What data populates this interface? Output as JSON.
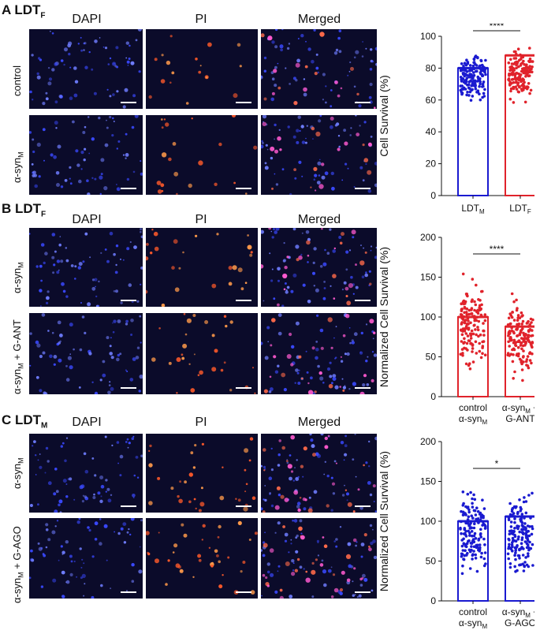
{
  "panels": [
    {
      "label": "A LDT",
      "label_sub": "F",
      "columns": [
        "DAPI",
        "PI",
        "Merged"
      ],
      "rows": [
        {
          "label": "control",
          "label_sub": ""
        },
        {
          "label": "α-syn",
          "label_sub": "M"
        }
      ]
    },
    {
      "label": "B LDT",
      "label_sub": "F",
      "columns": [
        "DAPI",
        "PI",
        "Merged"
      ],
      "rows": [
        {
          "label": "α-syn",
          "label_sub": "M"
        },
        {
          "label": "α-syn",
          "label_sub": "M",
          "label_suffix": " + G-ANT"
        }
      ]
    },
    {
      "label": "C LDT",
      "label_sub": "M",
      "columns": [
        "DAPI",
        "PI",
        "Merged"
      ],
      "rows": [
        {
          "label": "α-syn",
          "label_sub": "M"
        },
        {
          "label": "α-syn",
          "label_sub": "M",
          "label_suffix": " + G-AGO"
        }
      ]
    }
  ],
  "colors": {
    "blue": "#1a1ad0",
    "red": "#e0232b",
    "micrograph_bg": "#0b0b2a"
  },
  "chart_data": [
    {
      "type": "bar",
      "ylabel": "Cell Survival (%)",
      "ylim": [
        0,
        100
      ],
      "yticks": [
        0,
        20,
        40,
        60,
        80,
        100
      ],
      "categories": [
        {
          "main": "LDT",
          "sub": "M"
        },
        {
          "main": "LDT",
          "sub": "F"
        }
      ],
      "values": [
        80,
        88
      ],
      "point_ranges": [
        [
          53,
          96
        ],
        [
          55,
          99
        ]
      ],
      "series_colors": [
        "blue",
        "red"
      ],
      "significance": "****"
    },
    {
      "type": "bar",
      "ylabel": "Normalized Cell Survival (%)",
      "ylim": [
        0,
        200
      ],
      "yticks": [
        0,
        50,
        100,
        150,
        200
      ],
      "categories": [
        {
          "line1": "control",
          "main": "α-syn",
          "sub": "M"
        },
        {
          "main": "α-syn",
          "sub": "M",
          "suffix": " +",
          "line2": "G-ANT"
        }
      ],
      "values": [
        100,
        88
      ],
      "point_ranges": [
        [
          10,
          172
        ],
        [
          0,
          140
        ]
      ],
      "series_colors": [
        "red",
        "red"
      ],
      "significance": "****"
    },
    {
      "type": "bar",
      "ylabel": "Normalized Cell Survival (%)",
      "ylim": [
        0,
        200
      ],
      "yticks": [
        0,
        50,
        100,
        150,
        200
      ],
      "categories": [
        {
          "line1": "control",
          "main": "α-syn",
          "sub": "M"
        },
        {
          "main": "α-syn",
          "sub": "M",
          "suffix": " +",
          "line2": "G-AGO"
        }
      ],
      "values": [
        100,
        106
      ],
      "point_ranges": [
        [
          15,
          158
        ],
        [
          10,
          155
        ]
      ],
      "series_colors": [
        "blue",
        "blue"
      ],
      "significance": "*"
    }
  ]
}
